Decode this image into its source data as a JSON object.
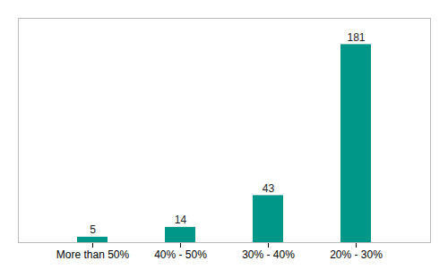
{
  "chart_data": {
    "type": "bar",
    "categories": [
      "More than 50%",
      "40% - 50%",
      "30% - 40%",
      "20% - 30%"
    ],
    "values": [
      5,
      14,
      43,
      181
    ],
    "color": "#009688",
    "ylim": [
      0,
      205
    ],
    "grid": false,
    "data_labels": true,
    "tick_labels": "x"
  }
}
